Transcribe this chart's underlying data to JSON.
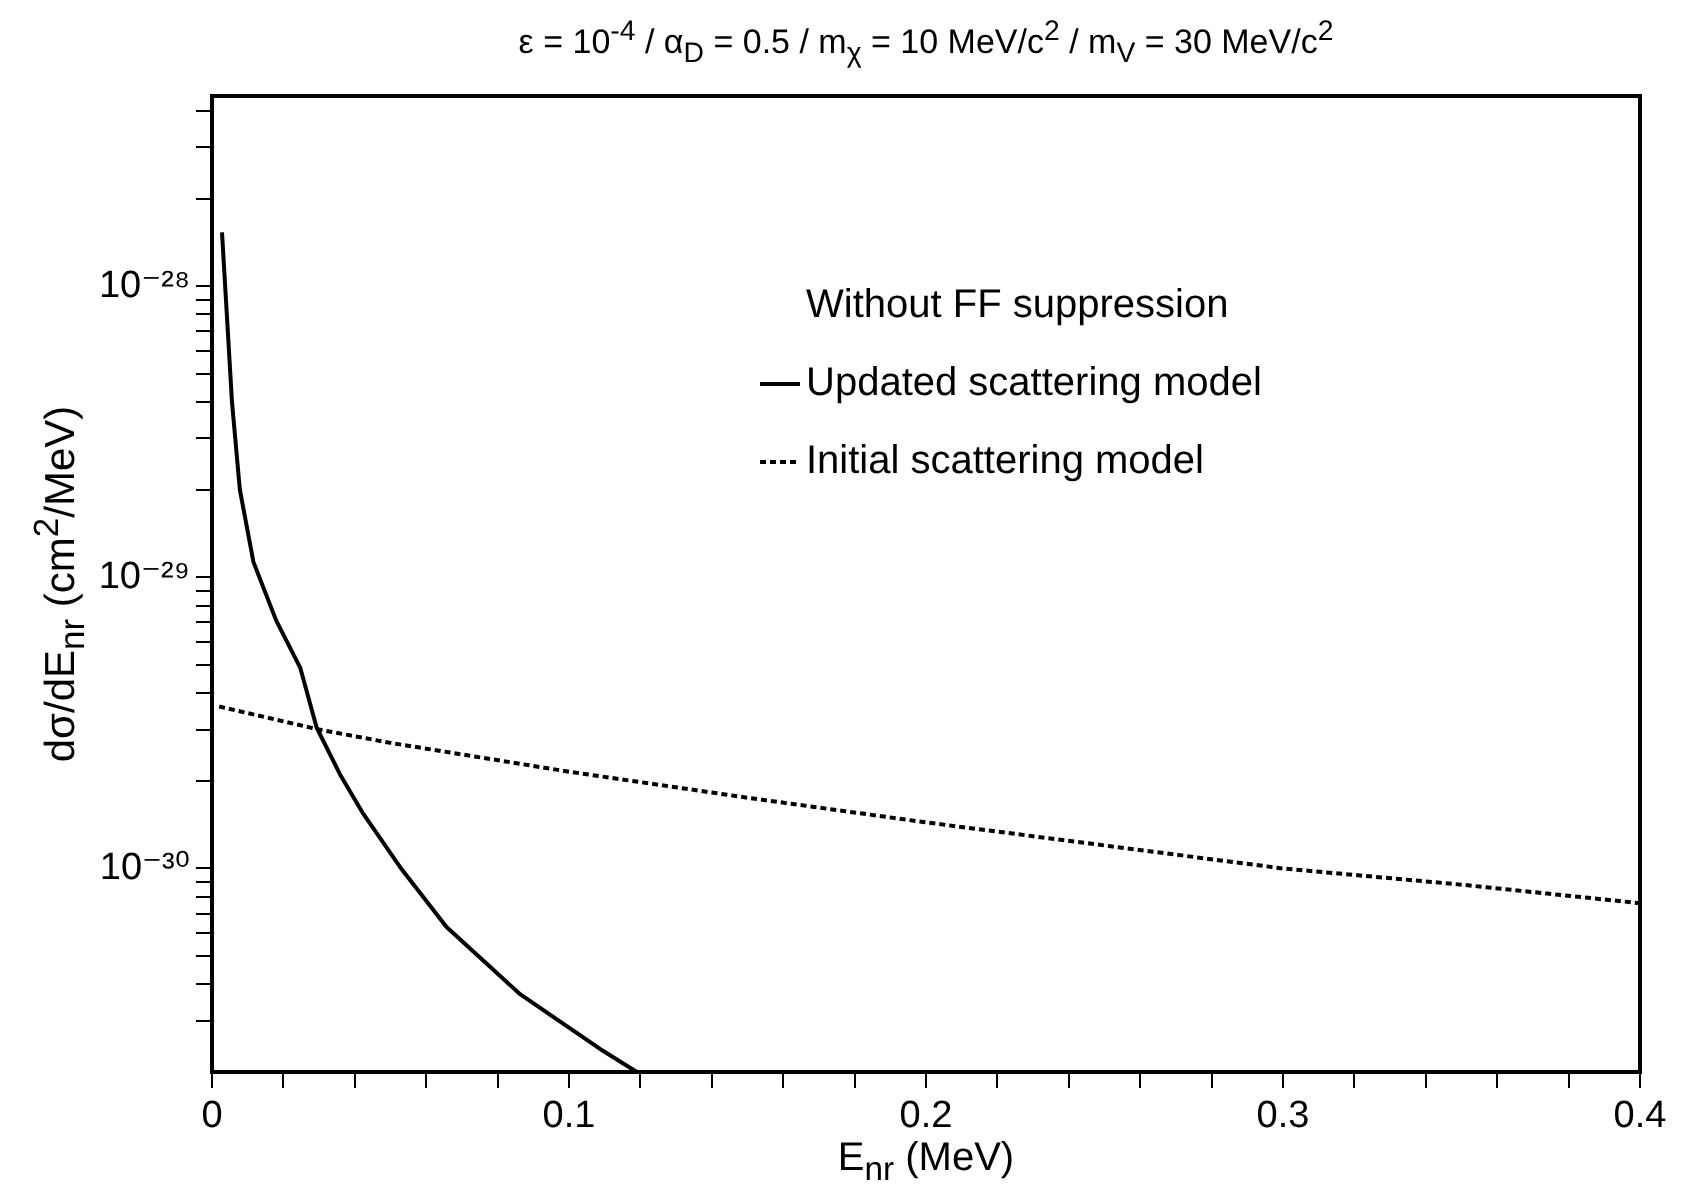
{
  "chart_data": {
    "type": "line",
    "title": "ε = 10$^{-4}$  /  α$_{D}$ = 0.5  /  m$_{χ}$ = 10 MeV/c$^{2}$  /  m$_{V}$ = 30 MeV/c$^{2}$",
    "xlabel": "E$_{nr}$ (MeV)",
    "ylabel": "dσ/dE$_{nr}$ (cm$^{2}$/MeV)",
    "legend_title": "Without FF suppression",
    "legend": "top right",
    "log": "y",
    "grid": false,
    "marker": "none",
    "xlim": [
      0,
      0.4
    ],
    "xticks": [
      0,
      {
        "value": 0.02,
        "label": null
      },
      {
        "value": 0.04,
        "label": null
      },
      {
        "value": 0.06,
        "label": null
      },
      {
        "value": 0.08,
        "label": null
      },
      0.1,
      {
        "value": 0.12,
        "label": null
      },
      {
        "value": 0.14,
        "label": null
      },
      {
        "value": 0.16,
        "label": null
      },
      {
        "value": 0.18,
        "label": null
      },
      0.2,
      {
        "value": 0.22,
        "label": null
      },
      {
        "value": 0.24,
        "label": null
      },
      {
        "value": 0.26,
        "label": null
      },
      {
        "value": 0.28,
        "label": null
      },
      0.3,
      {
        "value": 0.32,
        "label": null
      },
      {
        "value": 0.34,
        "label": null
      },
      {
        "value": 0.36,
        "label": null
      },
      {
        "value": 0.38,
        "label": null
      },
      0.4
    ],
    "ylim": [
      2e-31,
      4.5e-28
    ],
    "yticks": [
      {
        "value": 3e-31,
        "label": null
      },
      {
        "value": 4e-31,
        "label": null
      },
      {
        "value": 5e-31,
        "label": null
      },
      {
        "value": 6e-31,
        "label": null
      },
      {
        "value": 7e-31,
        "label": null
      },
      {
        "value": 8e-31,
        "label": null
      },
      {
        "value": 9e-31,
        "label": null
      },
      {
        "value": 1e-30,
        "label": "10⁻³⁰"
      },
      {
        "value": 2e-30,
        "label": null
      },
      {
        "value": 3e-30,
        "label": null
      },
      {
        "value": 4e-30,
        "label": null
      },
      {
        "value": 5e-30,
        "label": null
      },
      {
        "value": 6e-30,
        "label": null
      },
      {
        "value": 7e-30,
        "label": null
      },
      {
        "value": 8e-30,
        "label": null
      },
      {
        "value": 9e-30,
        "label": null
      },
      {
        "value": 1e-29,
        "label": "10⁻²⁹"
      },
      {
        "value": 2e-29,
        "label": null
      },
      {
        "value": 3e-29,
        "label": null
      },
      {
        "value": 4e-29,
        "label": null
      },
      {
        "value": 5e-29,
        "label": null
      },
      {
        "value": 6e-29,
        "label": null
      },
      {
        "value": 7e-29,
        "label": null
      },
      {
        "value": 8e-29,
        "label": null
      },
      {
        "value": 9e-29,
        "label": null
      },
      {
        "value": 1e-28,
        "label": "10⁻²⁸"
      },
      {
        "value": 2e-28,
        "label": null
      },
      {
        "value": 3e-28,
        "label": null
      },
      {
        "value": 4e-28,
        "label": null
      }
    ],
    "series": [
      {
        "name": "Updated scattering model",
        "color": "#000000",
        "line_style": "solid",
        "x": [
          0.0028,
          0.0056,
          0.0078,
          0.0116,
          0.018,
          0.0247,
          0.0293,
          0.0359,
          0.0424,
          0.0527,
          0.0657,
          0.0863,
          0.1087,
          0.119
        ],
        "values": [
          1.53e-28,
          4e-29,
          2e-29,
          1.13e-29,
          7.1e-30,
          4.9e-30,
          3.05e-30,
          2.1e-30,
          1.54e-30,
          1.01e-30,
          6.3e-31,
          3.7e-31,
          2.4e-31,
          2e-31
        ]
      },
      {
        "name": "Initial scattering model",
        "color": "#000000",
        "line_style": "dotted",
        "x": [
          0.002,
          0.03,
          0.05,
          0.1,
          0.15,
          0.2,
          0.25,
          0.3,
          0.35,
          0.4
        ],
        "values": [
          3.6e-30,
          3e-30,
          2.7e-30,
          2.15e-30,
          1.75e-30,
          1.44e-30,
          1.2e-30,
          1e-30,
          8.8e-31,
          7.6e-31
        ]
      }
    ]
  }
}
